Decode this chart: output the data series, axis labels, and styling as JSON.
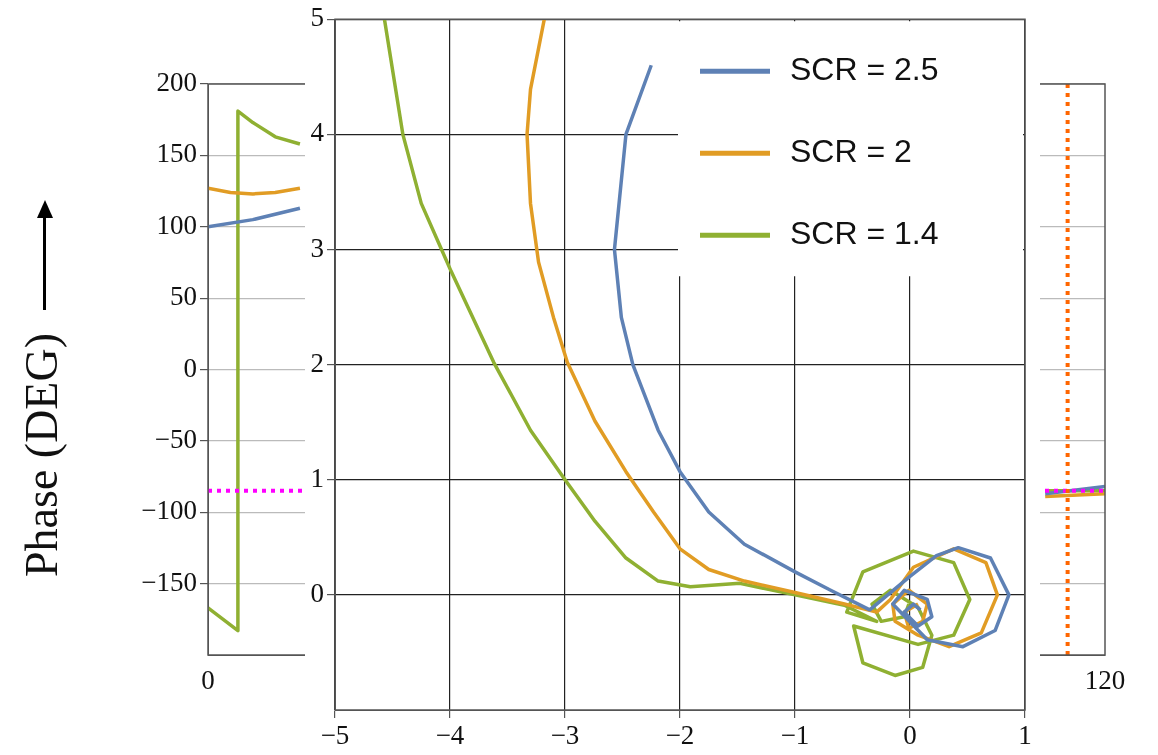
{
  "chart_data": [
    {
      "type": "line",
      "ylabel": "Phase (DEG)",
      "xlim": [
        0,
        120
      ],
      "xticks": [
        0,
        120
      ],
      "ylim": [
        -200,
        200
      ],
      "yticks": [
        -150,
        -100,
        -50,
        0,
        50,
        100,
        150,
        200
      ],
      "grid": "y",
      "ref_lines": [
        {
          "axis": "y",
          "value": -85,
          "color": "#ff00ff",
          "line_style": "dotted"
        },
        {
          "axis": "x",
          "value": 115,
          "color": "#ff6600",
          "line_style": "dotted"
        }
      ],
      "series": [
        {
          "color": "#5e81b5",
          "x": [
            0,
            6,
            12.3,
            60,
            112,
            120
          ],
          "values": [
            100,
            105,
            113,
            null,
            -87,
            -82
          ]
        },
        {
          "color": "#e19c24",
          "x": [
            0,
            3,
            6,
            9,
            12.3,
            60,
            112,
            120
          ],
          "values": [
            127,
            124,
            123,
            124,
            127,
            null,
            -89,
            -87
          ]
        },
        {
          "color": "#8fb032",
          "x": [
            0,
            4,
            4,
            6,
            9,
            12.3,
            60,
            112,
            120
          ],
          "values": [
            -167,
            -183,
            181,
            173,
            163,
            158,
            null,
            -85,
            -85
          ]
        }
      ]
    },
    {
      "type": "line",
      "xlim": [
        -5,
        1
      ],
      "xticks": [
        -5,
        -4,
        -3,
        -2,
        -1,
        0,
        1
      ],
      "ylim": [
        -1,
        5
      ],
      "yticks": [
        0,
        1,
        2,
        3,
        4,
        5
      ],
      "grid": true,
      "legend": "top right",
      "series": [
        {
          "name": "SCR = 2.5",
          "color": "#5e81b5",
          "x": [
            -2.25,
            -2.47,
            -2.57,
            -2.51,
            -2.41,
            -2.19,
            -2.0,
            -1.75,
            -1.44,
            -1.0,
            -0.69,
            -0.35,
            0,
            0.23,
            0.42,
            0.7,
            0.86,
            0.74,
            0.46,
            0.15,
            -0.15,
            -0.05,
            0.15,
            0.19,
            0.07,
            -0.05,
            0.03,
            0.09
          ],
          "values": [
            4.6,
            4.0,
            3.0,
            2.41,
            2.0,
            1.43,
            1.07,
            0.72,
            0.44,
            0.2,
            0.04,
            -0.13,
            0.16,
            0.34,
            0.41,
            0.32,
            0,
            -0.31,
            -0.45,
            -0.39,
            -0.08,
            0.04,
            -0.04,
            -0.19,
            -0.27,
            -0.15,
            -0.08,
            -0.13
          ]
        },
        {
          "name": "SCR = 2",
          "color": "#e19c24",
          "x": [
            -3.18,
            -3.3,
            -3.33,
            -3.3,
            -3.23,
            -3.1,
            -2.98,
            -2.74,
            -2.47,
            -2.23,
            -2.0,
            -1.75,
            -1.44,
            -1.0,
            -0.57,
            -0.29,
            -0.17,
            0.03,
            0.38,
            0.66,
            0.76,
            0.62,
            0.34,
            0.07,
            -0.13,
            -0.15,
            -0.01,
            0.15,
            0.11,
            -0.01,
            -0.05,
            0.07
          ],
          "values": [
            5,
            4.39,
            4.0,
            3.4,
            2.89,
            2.41,
            2.02,
            1.51,
            1.07,
            0.72,
            0.4,
            0.22,
            0.12,
            0.02,
            -0.08,
            -0.15,
            -0.04,
            0.24,
            0.4,
            0.28,
            0,
            -0.33,
            -0.45,
            -0.35,
            -0.23,
            -0.08,
            0.04,
            -0.08,
            -0.23,
            -0.29,
            -0.15,
            -0.08
          ]
        },
        {
          "name": "SCR = 1.4",
          "color": "#8fb032",
          "x": [
            -4.57,
            -4.41,
            -4.25,
            -3.99,
            -3.62,
            -3.3,
            -3.0,
            -2.74,
            -2.47,
            -2.19,
            -1.91,
            -1.48,
            -1.0,
            -0.57,
            -0.29,
            -0.55,
            -0.41,
            0.03,
            0.38,
            0.52,
            0.38,
            0.07,
            -0.49,
            -0.41,
            -0.13,
            0.11,
            0.19,
            0.07,
            -0.17,
            -0.33,
            -0.25,
            -0.05,
            -0.01
          ],
          "values": [
            5,
            4.0,
            3.4,
            2.81,
            2.02,
            1.43,
            1.0,
            0.64,
            0.32,
            0.12,
            0.07,
            0.1,
            0,
            -0.09,
            -0.23,
            -0.15,
            0.2,
            0.38,
            0.28,
            -0.04,
            -0.35,
            -0.43,
            -0.27,
            -0.59,
            -0.7,
            -0.63,
            -0.35,
            -0.11,
            0.04,
            -0.08,
            -0.23,
            -0.19,
            -0.08
          ]
        }
      ]
    }
  ]
}
